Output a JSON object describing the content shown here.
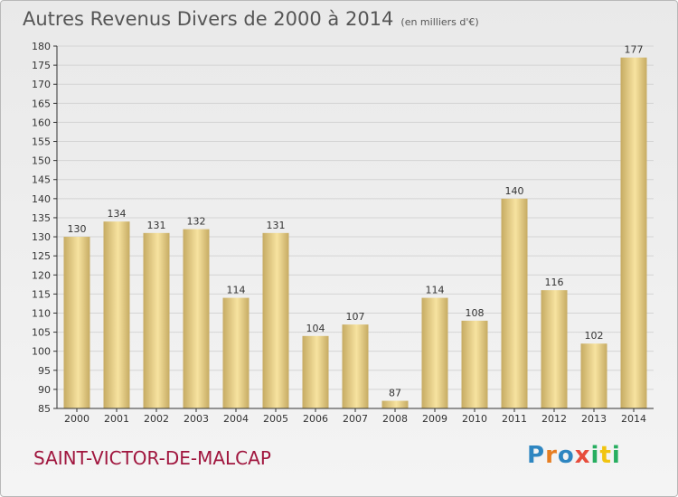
{
  "title": "Autres Revenus Divers de 2000 à 2014",
  "unit": "(en milliers d'€)",
  "town": "SAINT-VICTOR-DE-MALCAP",
  "logo": {
    "text": "Proxiti",
    "letters": [
      {
        "ch": "P",
        "color": "#2e86c1"
      },
      {
        "ch": "r",
        "color": "#e67e22"
      },
      {
        "ch": "o",
        "color": "#2e86c1"
      },
      {
        "ch": "x",
        "color": "#e74c3c"
      },
      {
        "ch": "i",
        "color": "#27ae60"
      },
      {
        "ch": "t",
        "color": "#f1c40f"
      },
      {
        "ch": "i",
        "color": "#27ae60"
      }
    ]
  },
  "colors": {
    "bar_light": "#f7e3a0",
    "bar_dark": "#c6ab63",
    "axis": "#333333",
    "grid": "#d4d4d4",
    "text": "#333333"
  },
  "chart_data": {
    "type": "bar",
    "categories": [
      "2000",
      "2001",
      "2002",
      "2003",
      "2004",
      "2005",
      "2006",
      "2007",
      "2008",
      "2009",
      "2010",
      "2011",
      "2012",
      "2013",
      "2014"
    ],
    "values": [
      130,
      134,
      131,
      132,
      114,
      131,
      104,
      107,
      87,
      114,
      108,
      140,
      116,
      102,
      177
    ],
    "ylim": [
      85,
      180
    ],
    "ytick_step": 5,
    "grid": true,
    "xlabel": "",
    "ylabel": ""
  }
}
